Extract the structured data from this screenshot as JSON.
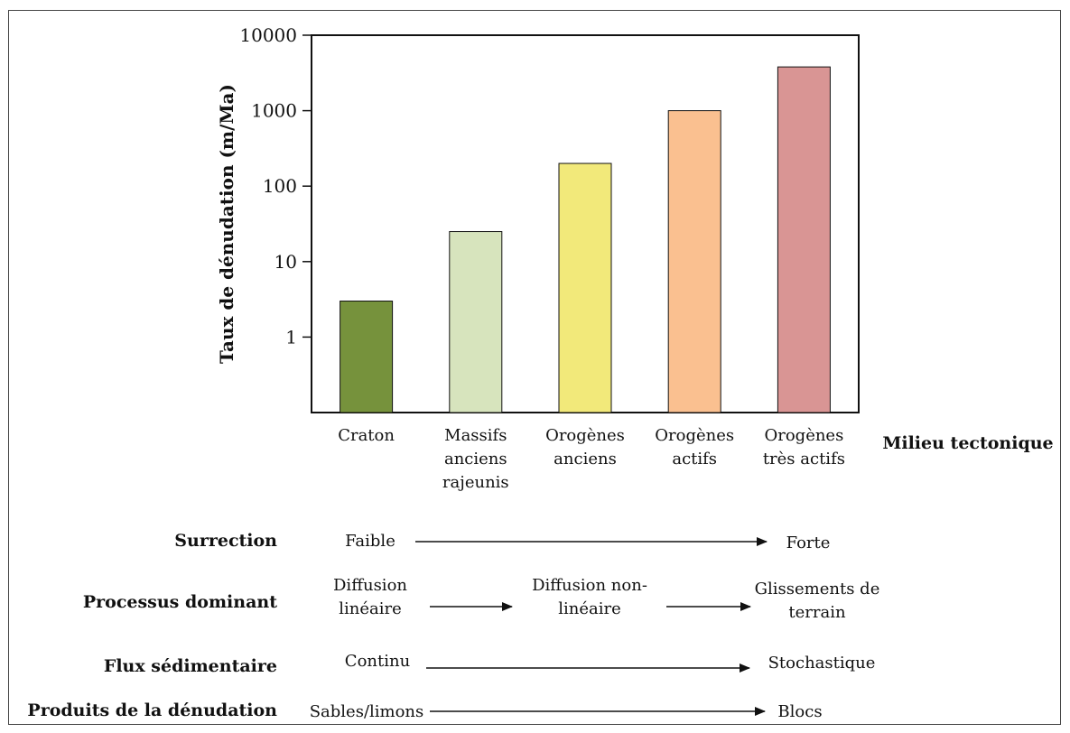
{
  "chart_data": {
    "type": "bar",
    "title": "",
    "ylabel": "Taux de dénudation (m/Ma)",
    "xlabel": "Milieu tectonique",
    "yscale": "log",
    "ylim": [
      0.1,
      10000
    ],
    "yticks": [
      {
        "value": 1,
        "label": "1"
      },
      {
        "value": 10,
        "label": "10"
      },
      {
        "value": 100,
        "label": "100"
      },
      {
        "value": 1000,
        "label": "1000"
      },
      {
        "value": 10000,
        "label": "10000"
      }
    ],
    "categories": [
      [
        "Craton"
      ],
      [
        "Massifs",
        "anciens",
        "rajeunis"
      ],
      [
        "Orogènes",
        "anciens"
      ],
      [
        "Orogènes",
        "actifs"
      ],
      [
        "Orogènes",
        "très actifs"
      ]
    ],
    "values": [
      3,
      25,
      200,
      1000,
      3800
    ],
    "colors": [
      "#76923c",
      "#d7e4bd",
      "#f2e97a",
      "#fac090",
      "#d99594"
    ]
  },
  "rows": {
    "surrection": {
      "label": "Surrection",
      "start": "Faible",
      "end": "Forte"
    },
    "processus": {
      "label": "Processus dominant",
      "start": [
        "Diffusion",
        "linéaire"
      ],
      "middle": [
        "Diffusion non-",
        "linéaire"
      ],
      "end": [
        "Glissements de",
        "terrain"
      ]
    },
    "flux": {
      "label": "Flux sédimentaire",
      "start": "Continu",
      "end": "Stochastique"
    },
    "produits": {
      "label": "Produits de la dénudation",
      "start": "Sables/limons",
      "end": "Blocs"
    }
  }
}
